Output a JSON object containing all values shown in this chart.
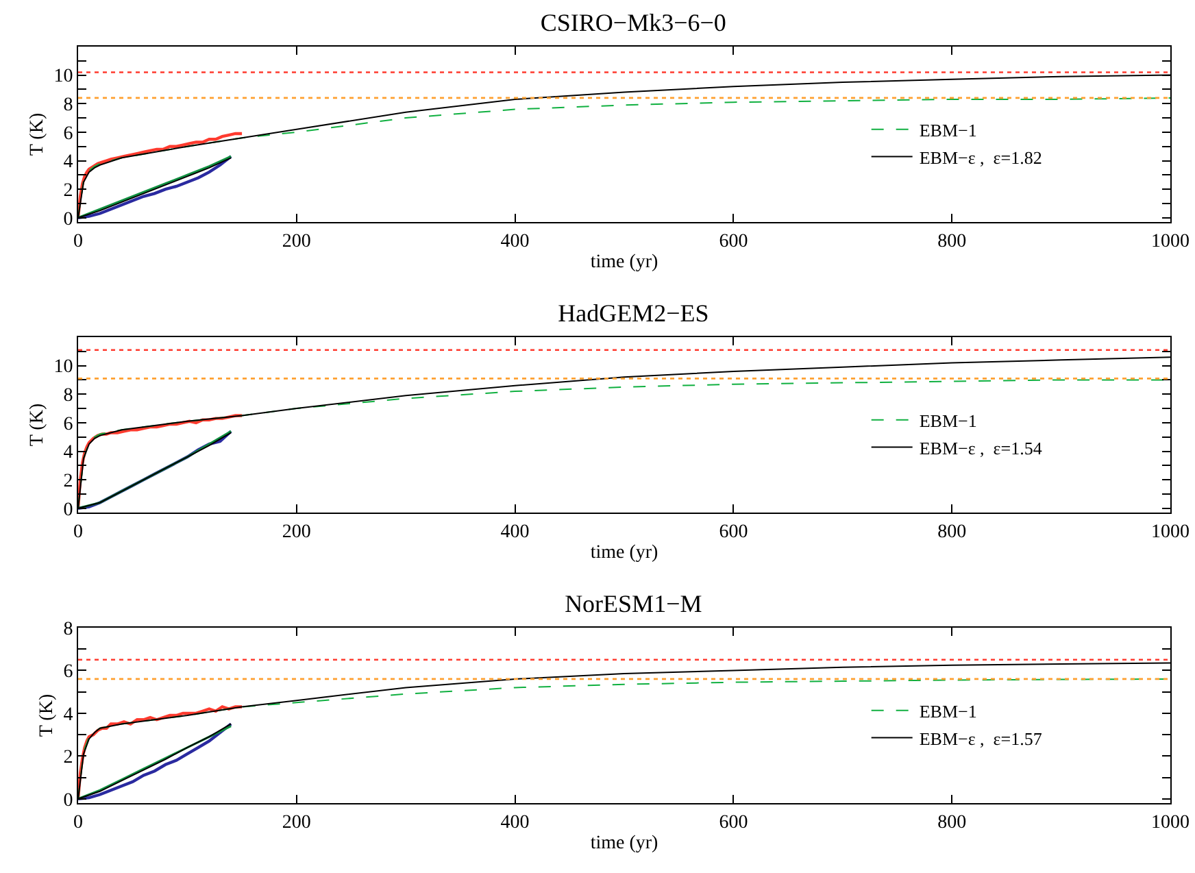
{
  "chart_data": [
    {
      "type": "line",
      "title": "CSIRO−Mk3−6−0",
      "xlabel": "time (yr)",
      "ylabel": "T (K)",
      "xlim": [
        0,
        1000
      ],
      "ylim": [
        -0.3,
        12
      ],
      "xticks": [
        0,
        200,
        400,
        600,
        800,
        1000
      ],
      "yticks": [
        0,
        {
          "value": 1,
          "label": null
        },
        2,
        {
          "value": 3,
          "label": null
        },
        4,
        {
          "value": 5,
          "label": null
        },
        6,
        {
          "value": 7,
          "label": null
        },
        8,
        {
          "value": 9,
          "label": null
        },
        10,
        {
          "value": 11,
          "label": null
        }
      ],
      "grid": false,
      "legend": "right",
      "marker": "none",
      "ref_lines": [
        {
          "axis": "y",
          "value": 10.2,
          "color": "#ff3b2f",
          "line_style": "dotted"
        },
        {
          "axis": "y",
          "value": 8.4,
          "color": "#ffa030",
          "line_style": "dotted"
        }
      ],
      "series": [
        {
          "color": "#ff3b2f",
          "x": [
            0,
            2,
            4,
            6,
            8,
            10,
            14,
            18,
            22,
            26,
            30,
            36,
            42,
            48,
            54,
            60,
            66,
            72,
            78,
            84,
            90,
            96,
            102,
            108,
            114,
            120,
            126,
            132,
            138,
            144,
            150
          ],
          "values": [
            0,
            1.5,
            2.4,
            2.9,
            3.2,
            3.4,
            3.6,
            3.8,
            3.9,
            4.0,
            4.1,
            4.2,
            4.3,
            4.4,
            4.5,
            4.6,
            4.7,
            4.8,
            4.8,
            5.0,
            5.0,
            5.1,
            5.2,
            5.3,
            5.3,
            5.5,
            5.5,
            5.7,
            5.8,
            5.9,
            5.9
          ]
        },
        {
          "color": "#2a2aa0",
          "x": [
            0,
            10,
            20,
            30,
            40,
            50,
            60,
            70,
            80,
            90,
            100,
            110,
            120,
            130,
            140
          ],
          "values": [
            0,
            0.1,
            0.3,
            0.6,
            0.9,
            1.2,
            1.5,
            1.7,
            2.0,
            2.2,
            2.5,
            2.8,
            3.2,
            3.7,
            4.3
          ]
        },
        {
          "color": "#109040",
          "line_style": "solid",
          "x": [
            0,
            20,
            40,
            60,
            80,
            100,
            120,
            140
          ],
          "values": [
            0,
            0.6,
            1.2,
            1.8,
            2.4,
            3.0,
            3.6,
            4.3
          ]
        },
        {
          "color": "#000000",
          "line_style": "solid",
          "x": [
            0,
            20,
            40,
            60,
            80,
            100,
            120,
            140
          ],
          "values": [
            0,
            0.5,
            1.1,
            1.7,
            2.3,
            2.9,
            3.5,
            4.2
          ]
        },
        {
          "name": "EBM−1",
          "color": "#10b040",
          "line_style": "dashed",
          "x": [
            0,
            5,
            10,
            15,
            20,
            40,
            70,
            100,
            150,
            200,
            300,
            400,
            500,
            600,
            700,
            800,
            900,
            1000
          ],
          "values": [
            0,
            2.6,
            3.3,
            3.6,
            3.8,
            4.2,
            4.6,
            5.0,
            5.6,
            6.0,
            7.0,
            7.6,
            7.9,
            8.1,
            8.2,
            8.3,
            8.3,
            8.4
          ]
        },
        {
          "name": "EBM−ε ,  ε=1.82",
          "color": "#000000",
          "line_style": "solid",
          "x": [
            0,
            5,
            10,
            15,
            20,
            40,
            70,
            100,
            150,
            200,
            300,
            400,
            500,
            600,
            700,
            800,
            900,
            1000
          ],
          "values": [
            0,
            2.5,
            3.2,
            3.5,
            3.7,
            4.2,
            4.6,
            5.0,
            5.6,
            6.2,
            7.4,
            8.3,
            8.8,
            9.2,
            9.5,
            9.7,
            9.9,
            10.0
          ]
        }
      ]
    },
    {
      "type": "line",
      "title": "HadGEM2−ES",
      "xlabel": "time (yr)",
      "ylabel": "T (K)",
      "xlim": [
        0,
        1000
      ],
      "ylim": [
        -0.3,
        12
      ],
      "xticks": [
        0,
        200,
        400,
        600,
        800,
        1000
      ],
      "yticks": [
        0,
        {
          "value": 1,
          "label": null
        },
        2,
        {
          "value": 3,
          "label": null
        },
        4,
        {
          "value": 5,
          "label": null
        },
        6,
        {
          "value": 7,
          "label": null
        },
        8,
        {
          "value": 9,
          "label": null
        },
        10,
        {
          "value": 11,
          "label": null
        }
      ],
      "grid": false,
      "legend": "right",
      "marker": "none",
      "ref_lines": [
        {
          "axis": "y",
          "value": 11.1,
          "color": "#ff3b2f",
          "line_style": "dotted"
        },
        {
          "axis": "y",
          "value": 9.1,
          "color": "#ffa030",
          "line_style": "dotted"
        }
      ],
      "series": [
        {
          "color": "#ff3b2f",
          "x": [
            0,
            2,
            4,
            6,
            8,
            10,
            14,
            18,
            22,
            26,
            30,
            36,
            42,
            48,
            54,
            60,
            66,
            72,
            78,
            84,
            90,
            96,
            102,
            108,
            114,
            120,
            126,
            132,
            138,
            144,
            150
          ],
          "values": [
            0,
            2.0,
            3.2,
            3.9,
            4.3,
            4.6,
            4.9,
            5.1,
            5.2,
            5.2,
            5.3,
            5.3,
            5.4,
            5.5,
            5.5,
            5.6,
            5.7,
            5.7,
            5.8,
            5.9,
            5.9,
            6.0,
            6.1,
            6.0,
            6.2,
            6.2,
            6.3,
            6.3,
            6.4,
            6.5,
            6.5
          ]
        },
        {
          "color": "#2a2aa0",
          "x": [
            0,
            10,
            20,
            30,
            40,
            50,
            60,
            70,
            80,
            90,
            100,
            110,
            120,
            130,
            140
          ],
          "values": [
            0,
            0.1,
            0.4,
            0.8,
            1.2,
            1.6,
            2.0,
            2.4,
            2.8,
            3.2,
            3.6,
            4.1,
            4.5,
            4.7,
            5.4
          ]
        },
        {
          "color": "#109040",
          "line_style": "solid",
          "x": [
            0,
            20,
            40,
            60,
            80,
            100,
            120,
            140
          ],
          "values": [
            0,
            0.4,
            1.2,
            2.0,
            2.8,
            3.6,
            4.5,
            5.4
          ]
        },
        {
          "color": "#000000",
          "line_style": "solid",
          "x": [
            0,
            20,
            40,
            60,
            80,
            100,
            120,
            140
          ],
          "values": [
            0,
            0.4,
            1.2,
            2.0,
            2.8,
            3.6,
            4.4,
            5.3
          ]
        },
        {
          "name": "EBM−1",
          "color": "#10b040",
          "line_style": "dashed",
          "x": [
            0,
            5,
            10,
            15,
            20,
            40,
            70,
            100,
            150,
            200,
            300,
            400,
            500,
            600,
            700,
            800,
            900,
            1000
          ],
          "values": [
            0,
            3.5,
            4.6,
            5.0,
            5.2,
            5.5,
            5.8,
            6.1,
            6.5,
            7.0,
            7.7,
            8.2,
            8.5,
            8.7,
            8.8,
            8.9,
            9.0,
            9.0
          ]
        },
        {
          "name": "EBM−ε ,  ε=1.54",
          "color": "#000000",
          "line_style": "solid",
          "x": [
            0,
            5,
            10,
            15,
            20,
            40,
            70,
            100,
            150,
            200,
            300,
            400,
            500,
            600,
            700,
            800,
            900,
            1000
          ],
          "values": [
            0,
            3.5,
            4.5,
            4.9,
            5.1,
            5.5,
            5.8,
            6.1,
            6.5,
            7.0,
            7.9,
            8.6,
            9.2,
            9.6,
            9.9,
            10.2,
            10.4,
            10.6
          ]
        }
      ]
    },
    {
      "type": "line",
      "title": "NorESM1−M",
      "xlabel": "time (yr)",
      "ylabel": "T (K)",
      "xlim": [
        0,
        1000
      ],
      "ylim": [
        -0.2,
        8
      ],
      "xticks": [
        0,
        200,
        400,
        600,
        800,
        1000
      ],
      "yticks": [
        0,
        {
          "value": 1,
          "label": null
        },
        2,
        {
          "value": 3,
          "label": null
        },
        4,
        {
          "value": 5,
          "label": null
        },
        6,
        {
          "value": 7,
          "label": null
        },
        8
      ],
      "grid": false,
      "legend": "right",
      "marker": "none",
      "ref_lines": [
        {
          "axis": "y",
          "value": 6.5,
          "color": "#ff3b2f",
          "line_style": "dotted"
        },
        {
          "axis": "y",
          "value": 5.6,
          "color": "#ffa030",
          "line_style": "dotted"
        }
      ],
      "series": [
        {
          "color": "#ff3b2f",
          "x": [
            0,
            2,
            4,
            6,
            8,
            10,
            14,
            18,
            22,
            26,
            30,
            36,
            42,
            48,
            54,
            60,
            66,
            72,
            78,
            84,
            90,
            96,
            102,
            108,
            114,
            120,
            126,
            132,
            138,
            144,
            150
          ],
          "values": [
            0,
            1.2,
            1.9,
            2.4,
            2.7,
            2.9,
            3.0,
            3.2,
            3.3,
            3.3,
            3.5,
            3.5,
            3.6,
            3.5,
            3.7,
            3.7,
            3.8,
            3.7,
            3.8,
            3.9,
            3.9,
            4.0,
            4.0,
            4.0,
            4.1,
            4.2,
            4.1,
            4.3,
            4.2,
            4.3,
            4.3
          ]
        },
        {
          "color": "#2a2aa0",
          "x": [
            0,
            10,
            20,
            30,
            40,
            50,
            60,
            70,
            80,
            90,
            100,
            110,
            120,
            130,
            140
          ],
          "values": [
            0,
            0.05,
            0.2,
            0.4,
            0.6,
            0.8,
            1.1,
            1.3,
            1.6,
            1.8,
            2.1,
            2.4,
            2.7,
            3.1,
            3.5
          ]
        },
        {
          "color": "#109040",
          "line_style": "solid",
          "x": [
            0,
            20,
            40,
            60,
            80,
            100,
            120,
            140
          ],
          "values": [
            0,
            0.4,
            0.9,
            1.4,
            1.9,
            2.4,
            2.9,
            3.4
          ]
        },
        {
          "color": "#000000",
          "line_style": "solid",
          "x": [
            0,
            20,
            40,
            60,
            80,
            100,
            120,
            140
          ],
          "values": [
            0,
            0.35,
            0.85,
            1.35,
            1.85,
            2.4,
            2.9,
            3.5
          ]
        },
        {
          "name": "EBM−1",
          "color": "#10b040",
          "line_style": "dashed",
          "x": [
            0,
            5,
            10,
            15,
            20,
            40,
            70,
            100,
            150,
            200,
            300,
            400,
            500,
            600,
            700,
            800,
            900,
            1000
          ],
          "values": [
            0,
            2.2,
            2.9,
            3.1,
            3.3,
            3.5,
            3.7,
            3.9,
            4.3,
            4.5,
            4.9,
            5.2,
            5.35,
            5.45,
            5.5,
            5.55,
            5.58,
            5.6
          ]
        },
        {
          "name": "EBM−ε ,  ε=1.57",
          "color": "#000000",
          "line_style": "solid",
          "x": [
            0,
            5,
            10,
            15,
            20,
            40,
            70,
            100,
            150,
            200,
            300,
            400,
            500,
            600,
            700,
            800,
            900,
            1000
          ],
          "values": [
            0,
            2.1,
            2.8,
            3.1,
            3.3,
            3.5,
            3.7,
            3.9,
            4.3,
            4.6,
            5.2,
            5.6,
            5.85,
            6.0,
            6.15,
            6.25,
            6.3,
            6.35
          ]
        }
      ]
    }
  ]
}
